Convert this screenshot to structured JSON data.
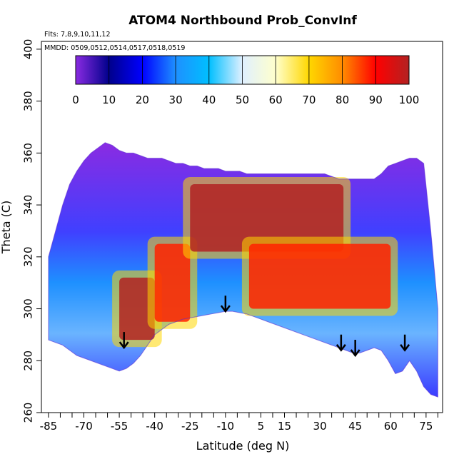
{
  "chart_data": {
    "type": "heatmap",
    "title": "ATOM4 Northbound Prob_ConvInf",
    "flights_note": "Flts: 7,8,9,10,11,12",
    "dates_note": "MMDD: 0509,0512,0514,0517,0518,0519",
    "xlabel": "Latitude (deg N)",
    "ylabel": "Theta (C)",
    "xlim": [
      -88,
      82
    ],
    "ylim": [
      260,
      403
    ],
    "x_tick_labels": [
      -85,
      -70,
      -55,
      -40,
      -25,
      -10,
      5,
      15,
      30,
      45,
      60,
      75
    ],
    "y_tick_labels": [
      260,
      280,
      300,
      320,
      340,
      360,
      380,
      400
    ],
    "colorbar": {
      "tick_labels": [
        0,
        10,
        20,
        30,
        40,
        50,
        60,
        70,
        80,
        90,
        100
      ],
      "colors": [
        "#8a2be2",
        "#00008b",
        "#0000ff",
        "#1e90ff",
        "#00bfff",
        "#e0f0ff",
        "#ffffcc",
        "#ffd700",
        "#ff8c00",
        "#ff0000",
        "#b22222"
      ]
    },
    "lower_boundary": [
      [
        -85,
        288
      ],
      [
        -82,
        287
      ],
      [
        -79,
        286
      ],
      [
        -76,
        284
      ],
      [
        -73,
        282
      ],
      [
        -70,
        281
      ],
      [
        -67,
        280
      ],
      [
        -64,
        279
      ],
      [
        -61,
        278
      ],
      [
        -58,
        277
      ],
      [
        -55,
        276
      ],
      [
        -52,
        277
      ],
      [
        -49,
        279
      ],
      [
        -46,
        282
      ],
      [
        -43,
        286
      ],
      [
        -40,
        290
      ],
      [
        -37,
        292
      ],
      [
        -34,
        294
      ],
      [
        -31,
        295
      ],
      [
        -28,
        296
      ],
      [
        -25,
        296.5
      ],
      [
        -22,
        297
      ],
      [
        -19,
        297.5
      ],
      [
        -16,
        298
      ],
      [
        -13,
        298.5
      ],
      [
        -10,
        299
      ],
      [
        -7,
        299
      ],
      [
        -4,
        298.5
      ],
      [
        -1,
        298
      ],
      [
        2,
        297
      ],
      [
        5,
        296
      ],
      [
        8,
        295
      ],
      [
        11,
        294
      ],
      [
        14,
        293
      ],
      [
        17,
        292
      ],
      [
        20,
        291
      ],
      [
        23,
        290
      ],
      [
        26,
        289
      ],
      [
        29,
        288
      ],
      [
        32,
        287
      ],
      [
        35,
        286
      ],
      [
        38,
        285
      ],
      [
        41,
        284
      ],
      [
        44,
        283
      ],
      [
        47,
        283
      ],
      [
        50,
        284
      ],
      [
        53,
        285
      ],
      [
        56,
        284
      ],
      [
        59,
        280
      ],
      [
        62,
        275
      ],
      [
        65,
        276
      ],
      [
        68,
        280
      ],
      [
        71,
        276
      ],
      [
        74,
        270
      ],
      [
        77,
        267
      ],
      [
        80,
        266
      ]
    ],
    "upper_boundary": [
      [
        -85,
        320
      ],
      [
        -82,
        330
      ],
      [
        -79,
        340
      ],
      [
        -76,
        348
      ],
      [
        -73,
        353
      ],
      [
        -70,
        357
      ],
      [
        -67,
        360
      ],
      [
        -64,
        362
      ],
      [
        -61,
        364
      ],
      [
        -58,
        363
      ],
      [
        -55,
        361
      ],
      [
        -52,
        360
      ],
      [
        -49,
        360
      ],
      [
        -46,
        359
      ],
      [
        -43,
        358
      ],
      [
        -40,
        358
      ],
      [
        -37,
        358
      ],
      [
        -34,
        357
      ],
      [
        -31,
        356
      ],
      [
        -28,
        356
      ],
      [
        -25,
        355
      ],
      [
        -22,
        355
      ],
      [
        -19,
        354
      ],
      [
        -16,
        354
      ],
      [
        -13,
        354
      ],
      [
        -10,
        353
      ],
      [
        -7,
        353
      ],
      [
        -4,
        353
      ],
      [
        -1,
        352
      ],
      [
        2,
        352
      ],
      [
        5,
        352
      ],
      [
        8,
        352
      ],
      [
        11,
        352
      ],
      [
        14,
        352
      ],
      [
        17,
        352
      ],
      [
        20,
        352
      ],
      [
        23,
        352
      ],
      [
        26,
        352
      ],
      [
        29,
        352
      ],
      [
        32,
        352
      ],
      [
        35,
        351
      ],
      [
        38,
        350
      ],
      [
        41,
        350
      ],
      [
        44,
        350
      ],
      [
        47,
        350
      ],
      [
        50,
        350
      ],
      [
        53,
        350
      ],
      [
        56,
        352
      ],
      [
        59,
        355
      ],
      [
        62,
        356
      ],
      [
        65,
        357
      ],
      [
        68,
        358
      ],
      [
        71,
        358
      ],
      [
        74,
        356
      ],
      [
        77,
        330
      ],
      [
        80,
        300
      ]
    ],
    "high_prob_zones": [
      {
        "lat_min": -55,
        "lat_max": -40,
        "theta_min": 288,
        "theta_max": 312,
        "prob": 90
      },
      {
        "lat_min": -40,
        "lat_max": -25,
        "theta_min": 295,
        "theta_max": 325,
        "prob": 85
      },
      {
        "lat_min": -25,
        "lat_max": 40,
        "theta_min": 322,
        "theta_max": 348,
        "prob": 92
      },
      {
        "lat_min": 0,
        "lat_max": 60,
        "theta_min": 300,
        "theta_max": 325,
        "prob": 88
      }
    ],
    "markers": [
      {
        "lat": -53,
        "theta": 285
      },
      {
        "lat": -10,
        "theta": 299
      },
      {
        "lat": 39,
        "theta": 284
      },
      {
        "lat": 45,
        "theta": 282
      },
      {
        "lat": 66,
        "theta": 284
      }
    ]
  }
}
